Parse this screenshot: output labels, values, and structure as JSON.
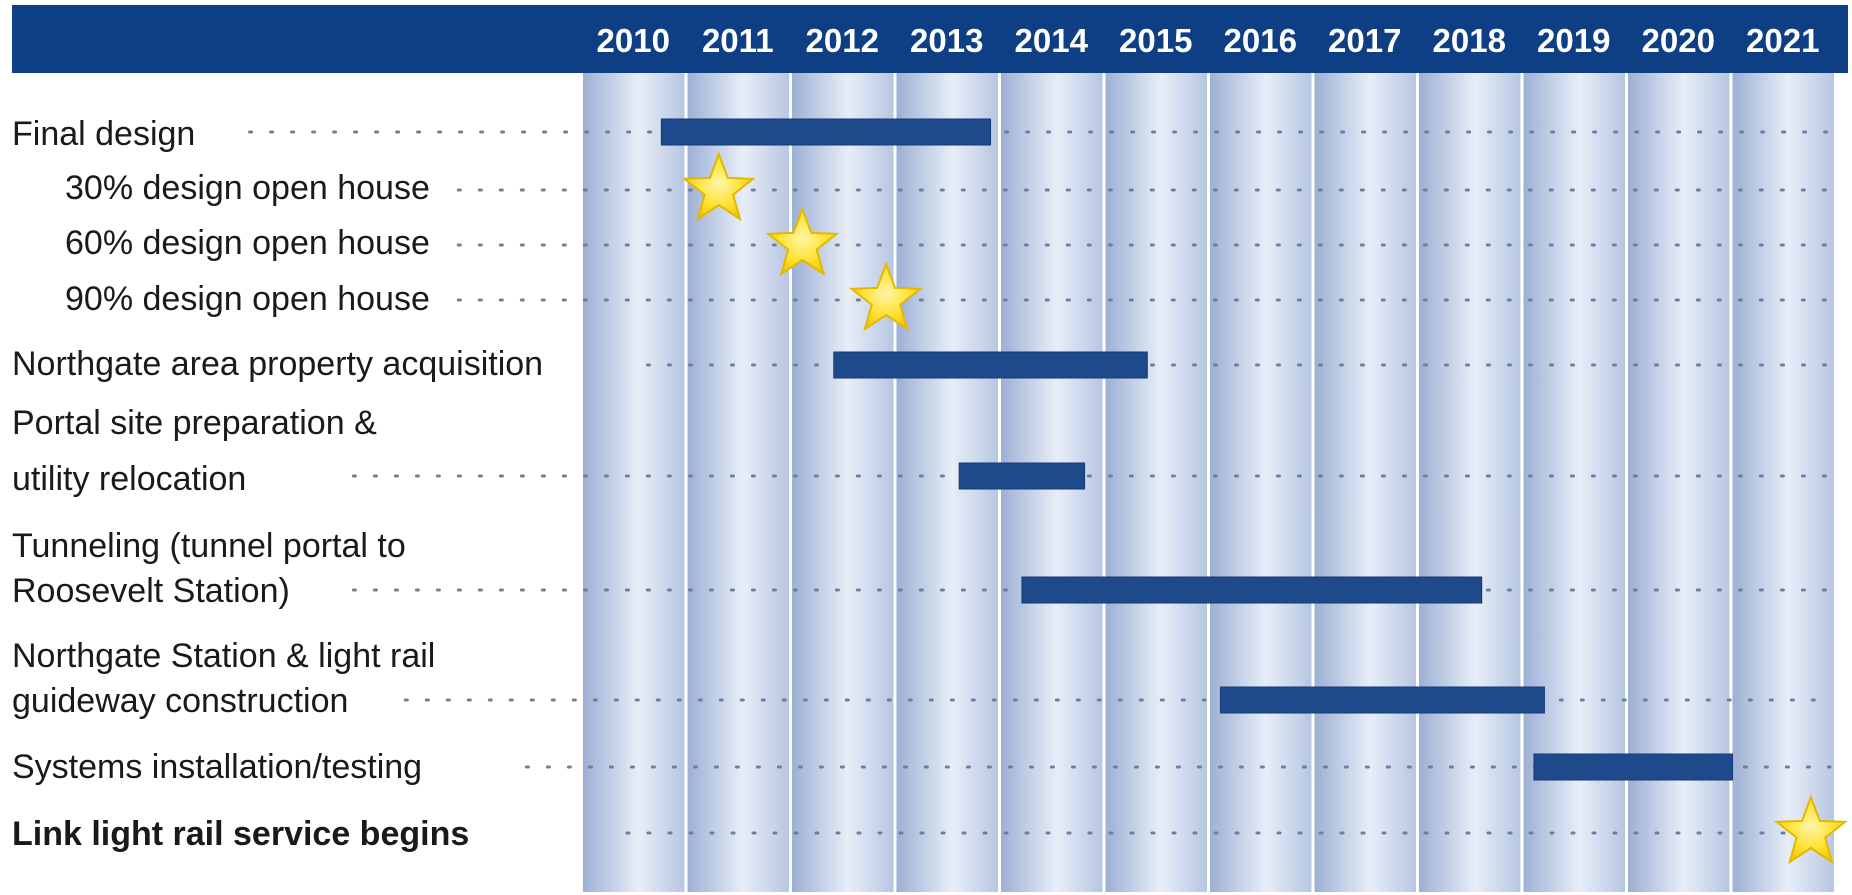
{
  "chart_data": {
    "type": "gantt",
    "title": "",
    "years": [
      "2010",
      "2011",
      "2012",
      "2013",
      "2014",
      "2015",
      "2016",
      "2017",
      "2018",
      "2019",
      "2020",
      "2021"
    ],
    "tasks": [
      {
        "label": "Final design",
        "bold": false,
        "indent": false,
        "kind": "bar",
        "start": 2010.75,
        "end": 2013.9
      },
      {
        "label": "30% design open house",
        "bold": false,
        "indent": true,
        "kind": "milestone",
        "date": 2011.3
      },
      {
        "label": "60% design open house",
        "bold": false,
        "indent": true,
        "kind": "milestone",
        "date": 2012.1
      },
      {
        "label": "90% design open house",
        "bold": false,
        "indent": true,
        "kind": "milestone",
        "date": 2012.9
      },
      {
        "label": "Northgate area property acquisition",
        "bold": false,
        "indent": false,
        "kind": "bar",
        "start": 2012.4,
        "end": 2015.4
      },
      {
        "label": "Portal site preparation & utility relocation",
        "lines": [
          "Portal site preparation &",
          "utility relocation"
        ],
        "bold": false,
        "indent": false,
        "kind": "bar",
        "start": 2013.6,
        "end": 2014.8
      },
      {
        "label": "Tunneling (tunnel portal to Roosevelt Station)",
        "lines": [
          "Tunneling (tunnel portal to",
          "Roosevelt Station)"
        ],
        "bold": false,
        "indent": false,
        "kind": "bar",
        "start": 2014.2,
        "end": 2018.6
      },
      {
        "label": "Northgate Station & light rail guideway construction",
        "lines": [
          "Northgate Station & light rail",
          "guideway construction"
        ],
        "bold": false,
        "indent": false,
        "kind": "bar",
        "start": 2016.1,
        "end": 2019.2
      },
      {
        "label": "Systems installation/testing",
        "bold": false,
        "indent": false,
        "kind": "bar",
        "start": 2019.1,
        "end": 2021.0
      },
      {
        "label": "Link light rail service begins",
        "bold": true,
        "indent": false,
        "kind": "milestone",
        "date": 2021.75
      }
    ],
    "colors": {
      "header": "#0e3f85",
      "header_text": "#ffffff",
      "bar": "#1e4a8c",
      "star_fill": "#ffe02e",
      "star_stroke": "#e3b800",
      "column_edge": "#9db0d4",
      "column_center": "#e8eef8",
      "dots": "#6f7f99",
      "label_text": "#1a1a1a"
    }
  }
}
